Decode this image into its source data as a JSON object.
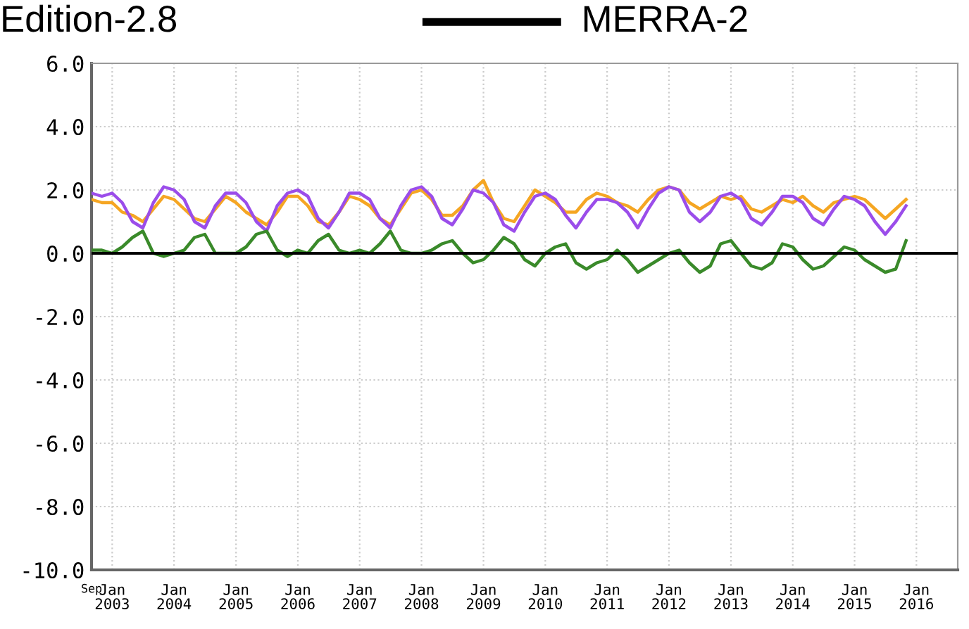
{
  "chart_data": {
    "type": "line",
    "annotations": [
      "Edition-2.8",
      "MERRA-2"
    ],
    "x": [
      "2002-09",
      "2002-11",
      "2003-01",
      "2003-03",
      "2003-05",
      "2003-07",
      "2003-09",
      "2003-11",
      "2004-01",
      "2004-03",
      "2004-05",
      "2004-07",
      "2004-09",
      "2004-11",
      "2005-01",
      "2005-03",
      "2005-05",
      "2005-07",
      "2005-09",
      "2005-11",
      "2006-01",
      "2006-03",
      "2006-05",
      "2006-07",
      "2006-09",
      "2006-11",
      "2007-01",
      "2007-03",
      "2007-05",
      "2007-07",
      "2007-09",
      "2007-11",
      "2008-01",
      "2008-03",
      "2008-05",
      "2008-07",
      "2008-09",
      "2008-11",
      "2009-01",
      "2009-03",
      "2009-05",
      "2009-07",
      "2009-09",
      "2009-11",
      "2010-01",
      "2010-03",
      "2010-05",
      "2010-07",
      "2010-09",
      "2010-11",
      "2011-01",
      "2011-03",
      "2011-05",
      "2011-07",
      "2011-09",
      "2011-11",
      "2012-01",
      "2012-03",
      "2012-05",
      "2012-07",
      "2012-09",
      "2012-11",
      "2013-01",
      "2013-03",
      "2013-05",
      "2013-07",
      "2013-09",
      "2013-11",
      "2014-01",
      "2014-03",
      "2014-05",
      "2014-07",
      "2014-09",
      "2014-11",
      "2015-01",
      "2015-03",
      "2015-05",
      "2015-07",
      "2015-09",
      "2015-11"
    ],
    "series": [
      {
        "color": "#f5a623",
        "values": [
          1.7,
          1.6,
          1.6,
          1.3,
          1.2,
          1.0,
          1.4,
          1.8,
          1.7,
          1.4,
          1.1,
          1.0,
          1.4,
          1.8,
          1.6,
          1.3,
          1.1,
          0.9,
          1.3,
          1.8,
          1.8,
          1.5,
          1.0,
          0.9,
          1.3,
          1.8,
          1.7,
          1.5,
          1.1,
          0.9,
          1.4,
          1.9,
          2.0,
          1.7,
          1.2,
          1.2,
          1.5,
          2.0,
          2.3,
          1.6,
          1.1,
          1.0,
          1.5,
          2.0,
          1.8,
          1.6,
          1.3,
          1.3,
          1.7,
          1.9,
          1.8,
          1.6,
          1.5,
          1.3,
          1.7,
          2.0,
          2.1,
          2.0,
          1.6,
          1.4,
          1.6,
          1.8,
          1.7,
          1.8,
          1.4,
          1.3,
          1.5,
          1.7,
          1.6,
          1.8,
          1.5,
          1.3,
          1.6,
          1.7,
          1.8,
          1.7,
          1.4,
          1.1,
          1.4,
          1.7
        ]
      },
      {
        "color": "#9b4dea",
        "values": [
          1.9,
          1.8,
          1.9,
          1.6,
          1.0,
          0.8,
          1.6,
          2.1,
          2.0,
          1.7,
          1.0,
          0.8,
          1.5,
          1.9,
          1.9,
          1.6,
          1.0,
          0.7,
          1.5,
          1.9,
          2.0,
          1.8,
          1.1,
          0.8,
          1.3,
          1.9,
          1.9,
          1.7,
          1.1,
          0.8,
          1.5,
          2.0,
          2.1,
          1.8,
          1.1,
          0.9,
          1.4,
          2.0,
          1.9,
          1.6,
          0.9,
          0.7,
          1.3,
          1.8,
          1.9,
          1.7,
          1.2,
          0.8,
          1.3,
          1.7,
          1.7,
          1.6,
          1.3,
          0.8,
          1.4,
          1.9,
          2.1,
          2.0,
          1.3,
          1.0,
          1.3,
          1.8,
          1.9,
          1.7,
          1.1,
          0.9,
          1.3,
          1.8,
          1.8,
          1.6,
          1.1,
          0.9,
          1.4,
          1.8,
          1.7,
          1.5,
          1.0,
          0.6,
          1.0,
          1.5
        ]
      },
      {
        "color": "#3a8a2a",
        "values": [
          0.1,
          0.1,
          0.0,
          0.2,
          0.5,
          0.7,
          0.0,
          -0.1,
          0.0,
          0.1,
          0.5,
          0.6,
          0.0,
          0.0,
          0.0,
          0.2,
          0.6,
          0.7,
          0.1,
          -0.1,
          0.1,
          0.0,
          0.4,
          0.6,
          0.1,
          0.0,
          0.1,
          0.0,
          0.3,
          0.7,
          0.1,
          0.0,
          0.0,
          0.1,
          0.3,
          0.4,
          0.0,
          -0.3,
          -0.2,
          0.1,
          0.5,
          0.3,
          -0.2,
          -0.4,
          0.0,
          0.2,
          0.3,
          -0.3,
          -0.5,
          -0.3,
          -0.2,
          0.1,
          -0.2,
          -0.6,
          -0.4,
          -0.2,
          0.0,
          0.1,
          -0.3,
          -0.6,
          -0.4,
          0.3,
          0.4,
          0.0,
          -0.4,
          -0.5,
          -0.3,
          0.3,
          0.2,
          -0.2,
          -0.5,
          -0.4,
          -0.1,
          0.2,
          0.1,
          -0.2,
          -0.4,
          -0.6,
          -0.5,
          0.4
        ]
      }
    ],
    "xlim": [
      "2002-09",
      "2016-09"
    ],
    "xticks": [
      {
        "value": "2002-09",
        "label": "Sep"
      },
      {
        "value": "2003-01",
        "label": "Jan 2003"
      },
      {
        "value": "2004-01",
        "label": "Jan 2004"
      },
      {
        "value": "2005-01",
        "label": "Jan 2005"
      },
      {
        "value": "2006-01",
        "label": "Jan 2006"
      },
      {
        "value": "2007-01",
        "label": "Jan 2007"
      },
      {
        "value": "2008-01",
        "label": "Jan 2008"
      },
      {
        "value": "2009-01",
        "label": "Jan 2009"
      },
      {
        "value": "2010-01",
        "label": "Jan 2010"
      },
      {
        "value": "2011-01",
        "label": "Jan 2011"
      },
      {
        "value": "2012-01",
        "label": "Jan 2012"
      },
      {
        "value": "2013-01",
        "label": "Jan 2013"
      },
      {
        "value": "2014-01",
        "label": "Jan 2014"
      },
      {
        "value": "2015-01",
        "label": "Jan 2015"
      },
      {
        "value": "2016-01",
        "label": "Jan 2016"
      }
    ],
    "ylim": [
      -10,
      6
    ],
    "yticks": [
      {
        "value": -10,
        "label": "-10.0"
      },
      {
        "value": -8,
        "label": "-8.0"
      },
      {
        "value": -6,
        "label": "-6.0"
      },
      {
        "value": -4,
        "label": "-4.0"
      },
      {
        "value": -2,
        "label": "-2.0"
      },
      {
        "value": 0,
        "label": "0.0"
      },
      {
        "value": 2,
        "label": "2.0"
      },
      {
        "value": 4,
        "label": "4.0"
      },
      {
        "value": 6,
        "label": "6.0"
      }
    ],
    "ref_lines": [
      {
        "axis": "y",
        "value": 0,
        "color": "#000000"
      }
    ],
    "grid": true
  }
}
